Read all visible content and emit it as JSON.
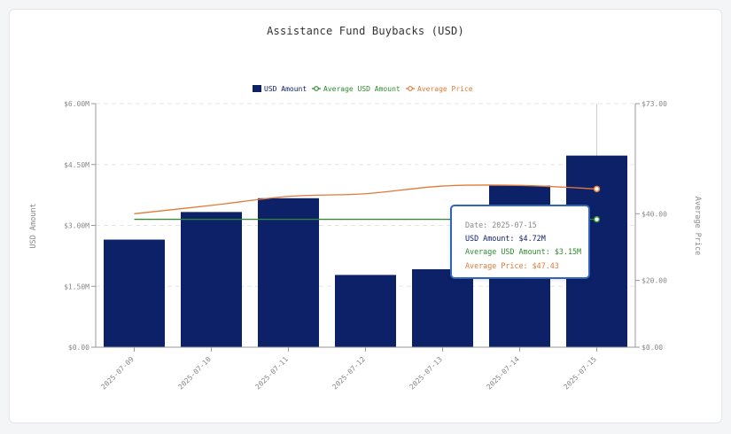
{
  "chart_data": {
    "type": "bar",
    "title": "Assistance Fund Buybacks (USD)",
    "categories": [
      "2025-07-09",
      "2025-07-10",
      "2025-07-11",
      "2025-07-12",
      "2025-07-13",
      "2025-07-14",
      "2025-07-15"
    ],
    "series": [
      {
        "name": "USD Amount",
        "type": "bar",
        "axis": "left",
        "color": "#0d2168",
        "values": [
          2.65,
          3.33,
          3.67,
          1.78,
          1.92,
          3.98,
          4.72
        ]
      },
      {
        "name": "Average USD Amount",
        "type": "line",
        "axis": "left",
        "color": "#2e8b2e",
        "values": [
          3.15,
          3.15,
          3.15,
          3.15,
          3.15,
          3.15,
          3.15
        ]
      },
      {
        "name": "Average Price",
        "type": "line",
        "axis": "right",
        "color": "#e07b39",
        "values": [
          40.0,
          42.5,
          45.2,
          46.0,
          48.3,
          48.5,
          47.43
        ]
      }
    ],
    "ylabel": "USD Amount",
    "y2label": "Average Price",
    "ylim": [
      0,
      6
    ],
    "y2lim": [
      0,
      73
    ],
    "yticks": [
      "$0.00",
      "$1.50M",
      "$3.00M",
      "$4.50M",
      "$6.00M"
    ],
    "yticks_values": [
      0,
      1.5,
      3,
      4.5,
      6
    ],
    "y2ticks": [
      "$0.00",
      "$20.00",
      "$40.00",
      "$73.00"
    ],
    "y2ticks_values": [
      0,
      20,
      40,
      73
    ],
    "grid": true,
    "legend": "top-center",
    "tooltip": {
      "category_index": 6,
      "date": "Date: 2025-07-15",
      "usd": "USD Amount: $4.72M",
      "avg_usd": "Average USD Amount: $3.15M",
      "avg_price": "Average Price: $47.43"
    }
  }
}
